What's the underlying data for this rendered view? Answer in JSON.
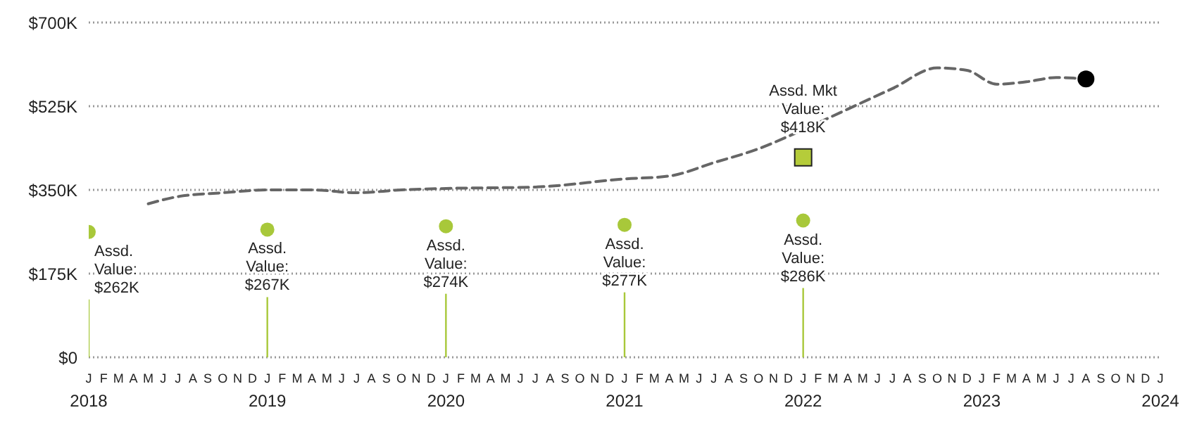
{
  "chart_data": {
    "type": "line",
    "grid": "y",
    "legend": false,
    "xlim": [
      "2018-01",
      "2024-01"
    ],
    "ylim": [
      0,
      700
    ],
    "yticks": [
      {
        "value": 0,
        "label": "$0"
      },
      {
        "value": 175,
        "label": "$175K"
      },
      {
        "value": 350,
        "label": "$350K"
      },
      {
        "value": 525,
        "label": "$525K"
      },
      {
        "value": 700,
        "label": "$700K"
      }
    ],
    "xticks": [
      {
        "value": "2018-01",
        "label": "J\n2018"
      },
      {
        "value": "2018-02",
        "label": "F"
      },
      {
        "value": "2018-03",
        "label": "M"
      },
      {
        "value": "2018-04",
        "label": "A"
      },
      {
        "value": "2018-05",
        "label": "M"
      },
      {
        "value": "2018-06",
        "label": "J"
      },
      {
        "value": "2018-07",
        "label": "J"
      },
      {
        "value": "2018-08",
        "label": "A"
      },
      {
        "value": "2018-09",
        "label": "S"
      },
      {
        "value": "2018-10",
        "label": "O"
      },
      {
        "value": "2018-11",
        "label": "N"
      },
      {
        "value": "2018-12",
        "label": "D"
      },
      {
        "value": "2019-01",
        "label": "J\n2019"
      },
      {
        "value": "2019-02",
        "label": "F"
      },
      {
        "value": "2019-03",
        "label": "M"
      },
      {
        "value": "2019-04",
        "label": "A"
      },
      {
        "value": "2019-05",
        "label": "M"
      },
      {
        "value": "2019-06",
        "label": "J"
      },
      {
        "value": "2019-07",
        "label": "J"
      },
      {
        "value": "2019-08",
        "label": "A"
      },
      {
        "value": "2019-09",
        "label": "S"
      },
      {
        "value": "2019-10",
        "label": "O"
      },
      {
        "value": "2019-11",
        "label": "N"
      },
      {
        "value": "2019-12",
        "label": "D"
      },
      {
        "value": "2020-01",
        "label": "J\n2020"
      },
      {
        "value": "2020-02",
        "label": "F"
      },
      {
        "value": "2020-03",
        "label": "M"
      },
      {
        "value": "2020-04",
        "label": "A"
      },
      {
        "value": "2020-05",
        "label": "M"
      },
      {
        "value": "2020-06",
        "label": "J"
      },
      {
        "value": "2020-07",
        "label": "J"
      },
      {
        "value": "2020-08",
        "label": "A"
      },
      {
        "value": "2020-09",
        "label": "S"
      },
      {
        "value": "2020-10",
        "label": "O"
      },
      {
        "value": "2020-11",
        "label": "N"
      },
      {
        "value": "2020-12",
        "label": "D"
      },
      {
        "value": "2021-01",
        "label": "J\n2021"
      },
      {
        "value": "2021-02",
        "label": "F"
      },
      {
        "value": "2021-03",
        "label": "M"
      },
      {
        "value": "2021-04",
        "label": "A"
      },
      {
        "value": "2021-05",
        "label": "M"
      },
      {
        "value": "2021-06",
        "label": "J"
      },
      {
        "value": "2021-07",
        "label": "J"
      },
      {
        "value": "2021-08",
        "label": "A"
      },
      {
        "value": "2021-09",
        "label": "S"
      },
      {
        "value": "2021-10",
        "label": "O"
      },
      {
        "value": "2021-11",
        "label": "N"
      },
      {
        "value": "2021-12",
        "label": "D"
      },
      {
        "value": "2022-01",
        "label": "J\n2022"
      },
      {
        "value": "2022-02",
        "label": "F"
      },
      {
        "value": "2022-03",
        "label": "M"
      },
      {
        "value": "2022-04",
        "label": "A"
      },
      {
        "value": "2022-05",
        "label": "M"
      },
      {
        "value": "2022-06",
        "label": "J"
      },
      {
        "value": "2022-07",
        "label": "J"
      },
      {
        "value": "2022-08",
        "label": "A"
      },
      {
        "value": "2022-09",
        "label": "S"
      },
      {
        "value": "2022-10",
        "label": "O"
      },
      {
        "value": "2022-11",
        "label": "N"
      },
      {
        "value": "2022-12",
        "label": "D"
      },
      {
        "value": "2023-01",
        "label": "J\n2023"
      },
      {
        "value": "2023-02",
        "label": "F"
      },
      {
        "value": "2023-03",
        "label": "M"
      },
      {
        "value": "2023-04",
        "label": "A"
      },
      {
        "value": "2023-05",
        "label": "M"
      },
      {
        "value": "2023-06",
        "label": "J"
      },
      {
        "value": "2023-07",
        "label": "J"
      },
      {
        "value": "2023-08",
        "label": "A"
      },
      {
        "value": "2023-09",
        "label": "S"
      },
      {
        "value": "2023-10",
        "label": "O"
      },
      {
        "value": "2023-11",
        "label": "N"
      },
      {
        "value": "2023-12",
        "label": "D"
      },
      {
        "value": "2024-01",
        "label": "J\n2024"
      }
    ],
    "series": [
      {
        "color": "#666666",
        "line_style": "dashed",
        "marker": "none",
        "x": [
          "2018-05",
          "2018-07",
          "2018-10",
          "2019-01",
          "2019-04",
          "2019-07",
          "2019-10",
          "2020-01",
          "2020-07",
          "2021-01",
          "2021-04",
          "2021-07",
          "2021-10",
          "2022-01",
          "2022-04",
          "2022-07",
          "2022-10",
          "2022-12",
          "2023-02",
          "2023-04",
          "2023-06",
          "2023-08"
        ],
        "values": [
          321,
          336,
          344,
          350,
          350,
          344,
          350,
          353,
          356,
          373,
          379,
          407,
          436,
          476,
          519,
          562,
          605,
          600,
          571,
          576,
          585,
          582
        ]
      },
      {
        "type": "scatter",
        "color": "#000000",
        "marker": "circle",
        "x": [
          "2023-08"
        ],
        "values": [
          582
        ]
      },
      {
        "type": "lollipop",
        "color": "#a8c83a",
        "marker": "circle",
        "x": [
          "2018-01",
          "2019-01",
          "2020-01",
          "2021-01",
          "2022-01"
        ],
        "values": [
          262,
          267,
          274,
          277,
          286
        ],
        "value_labels": [
          "Assd.\nValue:\n$262K",
          "Assd.\nValue:\n$267K",
          "Assd.\nValue:\n$274K",
          "Assd.\nValue:\n$277K",
          "Assd.\nValue:\n$286K"
        ]
      },
      {
        "type": "scatter",
        "color": "#b5cc3a",
        "marker": "square",
        "x": [
          "2022-01"
        ],
        "values": [
          418
        ],
        "value_labels": [
          "Assd. Mkt\nValue:\n$418K"
        ]
      }
    ]
  }
}
